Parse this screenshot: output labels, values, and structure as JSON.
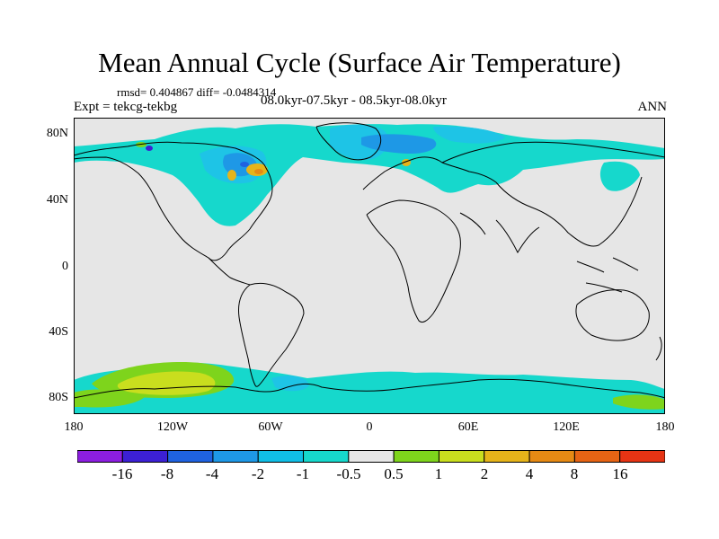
{
  "title": "Mean Annual Cycle (Surface Air Temperature)",
  "stats": "rmsd= 0.404867 diff= -0.0484314",
  "experiment": "Expt = tekcg-tekbg",
  "period": "08.0kyr-07.5kyr - 08.5kyr-08.0kyr",
  "season": "ANN",
  "lat_ticks": [
    {
      "label": "80N",
      "value": 80
    },
    {
      "label": "40N",
      "value": 40
    },
    {
      "label": "0",
      "value": 0
    },
    {
      "label": "40S",
      "value": -40
    },
    {
      "label": "80S",
      "value": -80
    }
  ],
  "lon_ticks": [
    {
      "label": "180",
      "value": -180
    },
    {
      "label": "120W",
      "value": -120
    },
    {
      "label": "60W",
      "value": -60
    },
    {
      "label": "0",
      "value": 0
    },
    {
      "label": "60E",
      "value": 60
    },
    {
      "label": "120E",
      "value": 120
    },
    {
      "label": "180",
      "value": 180
    }
  ],
  "colorbar": {
    "labels": [
      "-16",
      "-8",
      "-4",
      "-2",
      "-1",
      "-0.5",
      "0.5",
      "1",
      "2",
      "4",
      "8",
      "16"
    ],
    "colors": [
      "#8c1ee0",
      "#3c20d4",
      "#1f62e0",
      "#1e98e6",
      "#10bee6",
      "#16d8cc",
      "#e6e6e6",
      "#7ed41c",
      "#c9de1e",
      "#e6b41a",
      "#e68a14",
      "#e66414",
      "#e63414"
    ]
  },
  "colors": {
    "background": "#e6e6e6",
    "coast": "#000000",
    "cyan": "#16d8cc",
    "lightblue": "#1ec4e6",
    "midblue": "#1e98e6",
    "blue": "#1f62e0",
    "darkblue": "#3c20d4",
    "green": "#7ed41c",
    "yellowgreen": "#c9de1e",
    "yellow": "#e6b41a",
    "orange": "#e68a14"
  }
}
